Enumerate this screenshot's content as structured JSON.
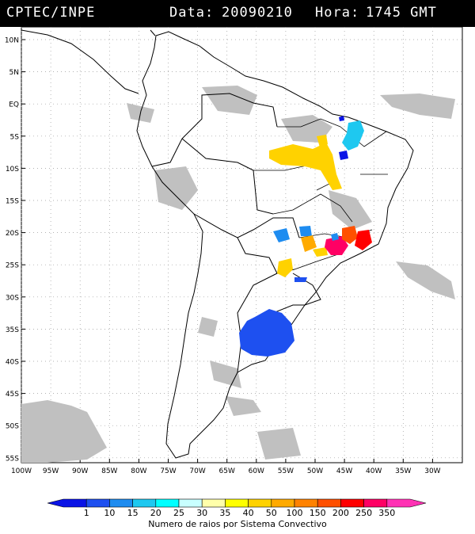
{
  "header": {
    "source": "CPTEC/INPE",
    "date_label": "Data:",
    "date": "20090210",
    "hour_label": "Hora:",
    "hour": "1745 GMT"
  },
  "map": {
    "lat_labels": [
      "10N",
      "5N",
      "EQ",
      "5S",
      "10S",
      "15S",
      "20S",
      "25S",
      "30S",
      "35S",
      "40S",
      "45S",
      "50S",
      "55S"
    ],
    "lon_labels": [
      "100W",
      "95W",
      "90W",
      "85W",
      "80W",
      "75W",
      "70W",
      "65W",
      "60W",
      "55W",
      "50W",
      "45W",
      "40W",
      "35W",
      "30W"
    ]
  },
  "legend": {
    "title": "Numero de raios por Sistema Convectivo",
    "ticks": [
      "1",
      "10",
      "15",
      "20",
      "25",
      "30",
      "35",
      "40",
      "50",
      "100",
      "150",
      "200",
      "250",
      "350"
    ],
    "colors": [
      "#0a14e6",
      "#1e50f0",
      "#1e8cf0",
      "#1ec8f0",
      "#00ffff",
      "#c8ffff",
      "#ffffaa",
      "#ffff00",
      "#ffd200",
      "#ffaa00",
      "#ff8200",
      "#ff5000",
      "#ff0000",
      "#ff0064",
      "#ff32b4"
    ]
  },
  "colors": {
    "cloud": "#c0c0c0",
    "coast": "#000000"
  }
}
